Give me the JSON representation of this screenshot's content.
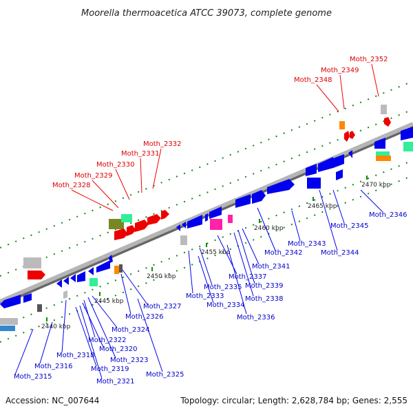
{
  "title": "Moorella thermoacetica ATCC 39073, complete genome",
  "footer": {
    "accession": "Accession: NC_007644",
    "summary": "Topology: circular; Length: 2,628,784 bp; Genes: 2,555"
  },
  "colors": {
    "forward": "#ee0000",
    "reverse": "#0000ee",
    "rna_green": "#33ee99",
    "grey_gene": "#bbbbbb",
    "olive_gene": "#778822",
    "orange_gene": "#ff8800",
    "magenta_gene": "#ff22aa",
    "backbone": "#999999",
    "tick": "#118811"
  },
  "ticks": [
    {
      "label": "2440 kbp"
    },
    {
      "label": "2445 kbp"
    },
    {
      "label": "2450 kbp"
    },
    {
      "label": "2455 kbp"
    },
    {
      "label": "2460 kbp"
    },
    {
      "label": "2465 kbp"
    },
    {
      "label": "2470 kbp"
    }
  ],
  "labels_top": [
    "Moth_2328",
    "Moth_2329",
    "Moth_2330",
    "Moth_2331",
    "Moth_2332",
    "Moth_2348",
    "Moth_2349",
    "Moth_2352"
  ],
  "labels_bottom": [
    "Moth_2315",
    "Moth_2316",
    "Moth_2318",
    "Moth_2319",
    "Moth_2321",
    "Moth_2320",
    "Moth_2322",
    "Moth_2323",
    "Moth_2324",
    "Moth_2325",
    "Moth_2326",
    "Moth_2327",
    "Moth_2333",
    "Moth_2334",
    "Moth_2335",
    "Moth_2336",
    "Moth_2337",
    "Moth_2338",
    "Moth_2339",
    "Moth_2341",
    "Moth_2342",
    "Moth_2343",
    "Moth_2344",
    "Moth_2345",
    "Moth_2346"
  ]
}
